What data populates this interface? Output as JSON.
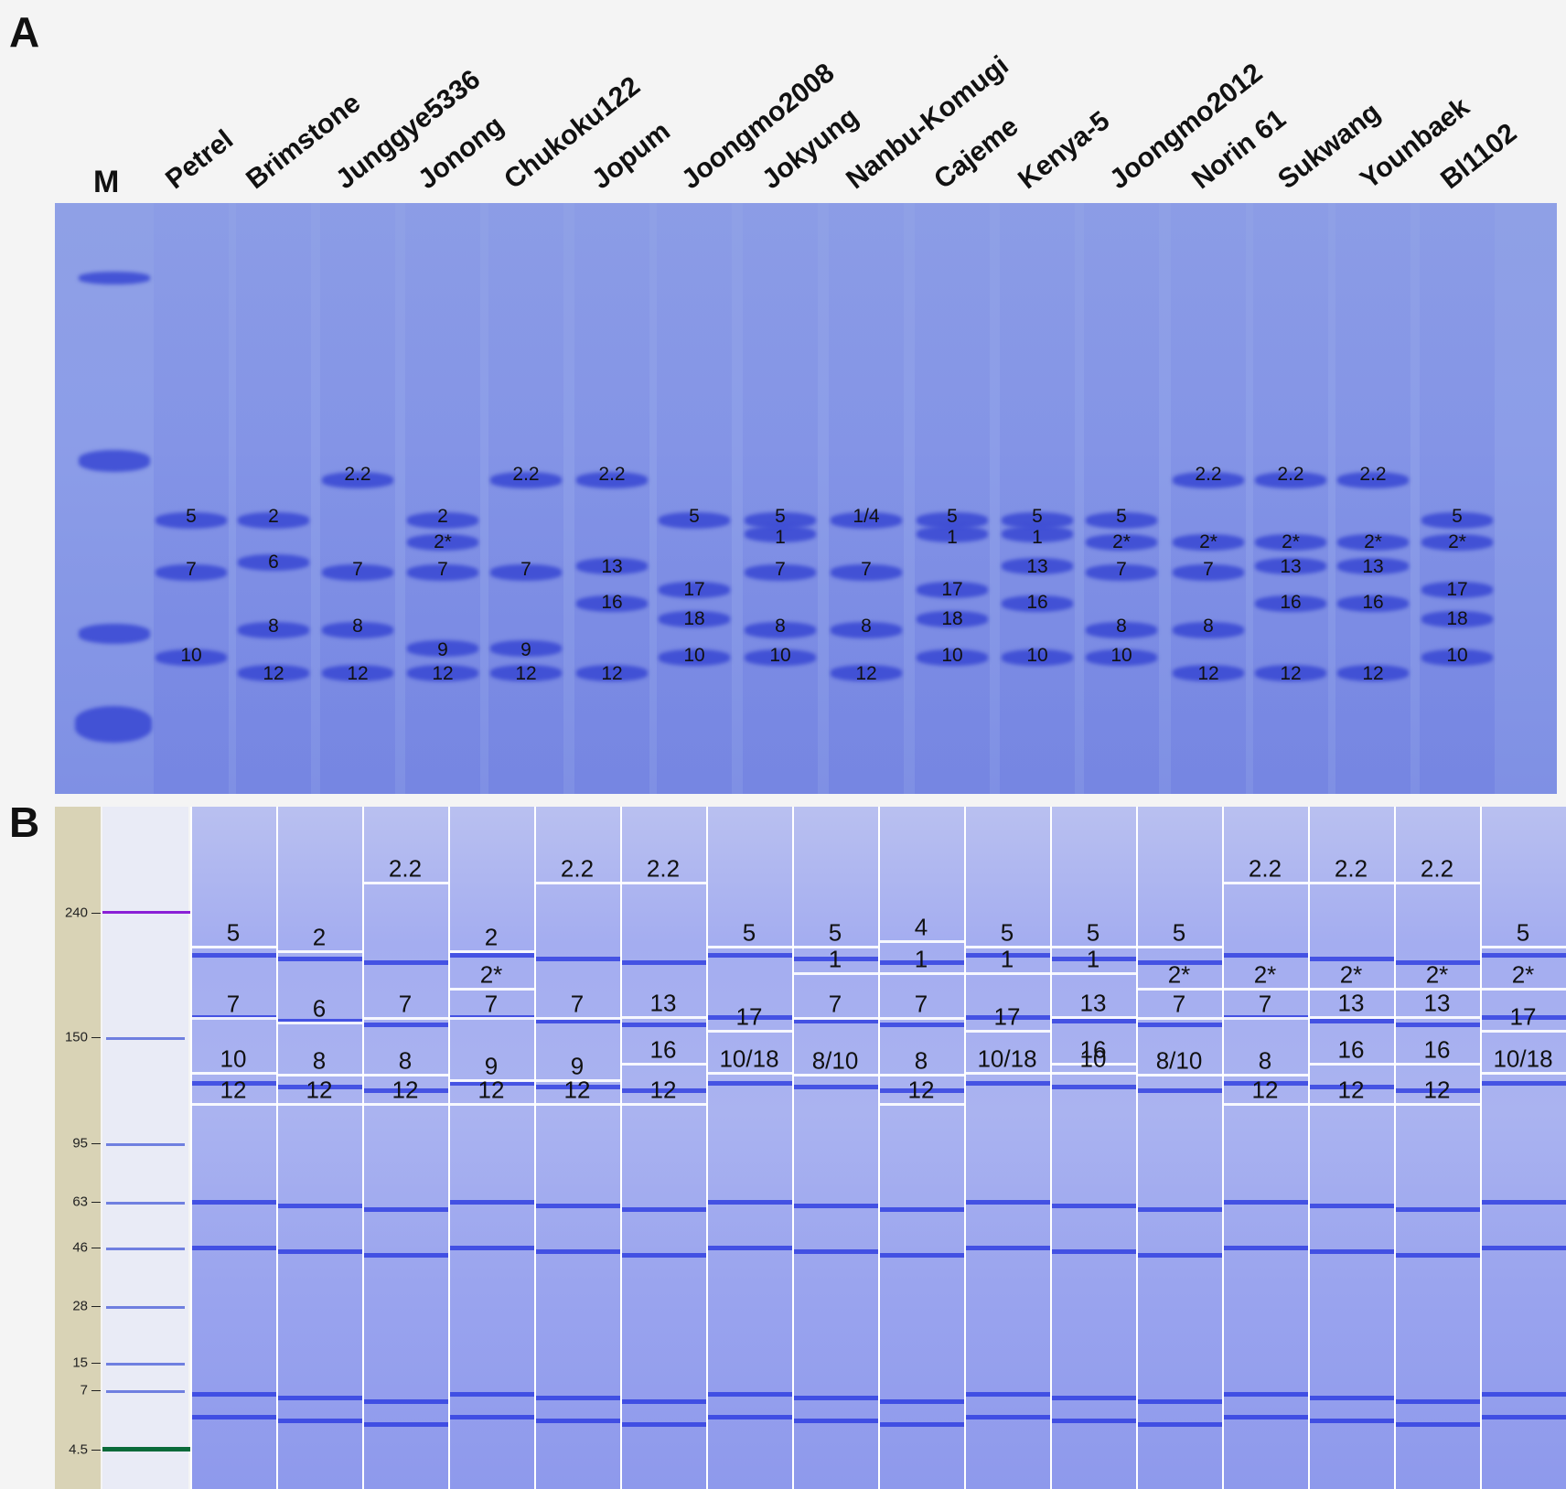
{
  "panel_a_letter": "A",
  "panel_b_letter": "B",
  "marker_label": "M",
  "varieties": [
    "Petrel",
    "Brimstone",
    "Junggye5336",
    "Jonong",
    "Chukoku122",
    "Jopum",
    "Joongmo2008",
    "Jokyung",
    "Nanbu-Komugi",
    "Cajeme",
    "Kenya-5",
    "Joongmo2012",
    "Norin 61",
    "Sukwang",
    "Younbaek",
    "Bl1102"
  ],
  "gel_a_bands": [
    [
      "5",
      "7",
      "10"
    ],
    [
      "2",
      "6",
      "8",
      "12"
    ],
    [
      "2.2",
      "7",
      "8",
      "12"
    ],
    [
      "2",
      "2*",
      "7",
      "9",
      "12"
    ],
    [
      "2.2",
      "7",
      "9",
      "12"
    ],
    [
      "2.2",
      "13",
      "16",
      "12"
    ],
    [
      "5",
      "17",
      "18",
      "10"
    ],
    [
      "5",
      "1",
      "7",
      "8",
      "10"
    ],
    [
      "1/4",
      "7",
      "8",
      "12"
    ],
    [
      "5",
      "1",
      "17",
      "18",
      "10"
    ],
    [
      "5",
      "1",
      "13",
      "16",
      "10"
    ],
    [
      "5",
      "2*",
      "7",
      "8",
      "10"
    ],
    [
      "2.2",
      "2*",
      "7",
      "8",
      "12"
    ],
    [
      "2.2",
      "2*",
      "13",
      "16",
      "12"
    ],
    [
      "2.2",
      "2*",
      "13",
      "16",
      "12"
    ],
    [
      "5",
      "2*",
      "17",
      "18",
      "10"
    ]
  ],
  "gel_b_labels": [
    [
      "5",
      "7",
      "10",
      "12"
    ],
    [
      "2",
      "6",
      "8",
      "12"
    ],
    [
      "2.2",
      "7",
      "8",
      "12"
    ],
    [
      "2",
      "2*",
      "7",
      "9",
      "12"
    ],
    [
      "2.2",
      "7",
      "9",
      "12"
    ],
    [
      "2.2",
      "13",
      "16",
      "12"
    ],
    [
      "5",
      "17",
      "10/18"
    ],
    [
      "5",
      "1",
      "7",
      "8/10"
    ],
    [
      "4",
      "1",
      "7",
      "8",
      "12"
    ],
    [
      "5",
      "1",
      "17",
      "10/18"
    ],
    [
      "5",
      "1",
      "13",
      "16",
      "10"
    ],
    [
      "5",
      "2*",
      "7",
      "8/10"
    ],
    [
      "2.2",
      "2*",
      "7",
      "8",
      "12"
    ],
    [
      "2.2",
      "2*",
      "13",
      "16",
      "12"
    ],
    [
      "2.2",
      "2*",
      "13",
      "16",
      "12"
    ],
    [
      "5",
      "2*",
      "17",
      "10/18"
    ]
  ],
  "size_axis_ticks": [
    "240",
    "150",
    "95",
    "63",
    "46",
    "28",
    "15",
    "7",
    "4.5"
  ],
  "colors": {
    "gel": "#8c9de8",
    "band": "#3746d2",
    "purple_marker": "#8a1fd6",
    "green_marker": "#0a6a3a"
  }
}
